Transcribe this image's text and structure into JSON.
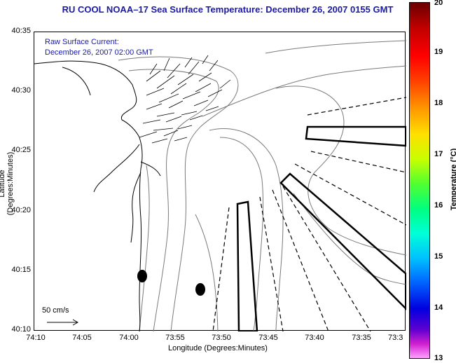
{
  "title": "RU COOL  NOAA–17  Sea Surface Temperature:  December 26, 2007 0155 GMT",
  "annotation": {
    "line1": "Raw Surface Current:",
    "line2": "December 26, 2007 02:00 GMT"
  },
  "axes": {
    "xlabel": "Longitude (Degrees:Minutes)",
    "ylabel": "Latitude (Degrees:Minutes)",
    "xticks": [
      "74:10",
      "74:05",
      "74:00",
      "73:55",
      "73:50",
      "73:45",
      "73:40",
      "73:35",
      "73:3"
    ],
    "yticks": [
      "40:35",
      "40:30",
      "40:25",
      "40:20",
      "40:15",
      "40:10"
    ]
  },
  "colorbar": {
    "title": "Temperature (°C)",
    "ticks": [
      "20",
      "19",
      "18",
      "17",
      "16",
      "15",
      "14",
      "13"
    ],
    "range": [
      13,
      20
    ]
  },
  "scale": {
    "label": "50 cm/s"
  },
  "colors": {
    "title": "#1a1aa6",
    "coast": "#000000",
    "bathymetry": "#7a7a7a"
  }
}
